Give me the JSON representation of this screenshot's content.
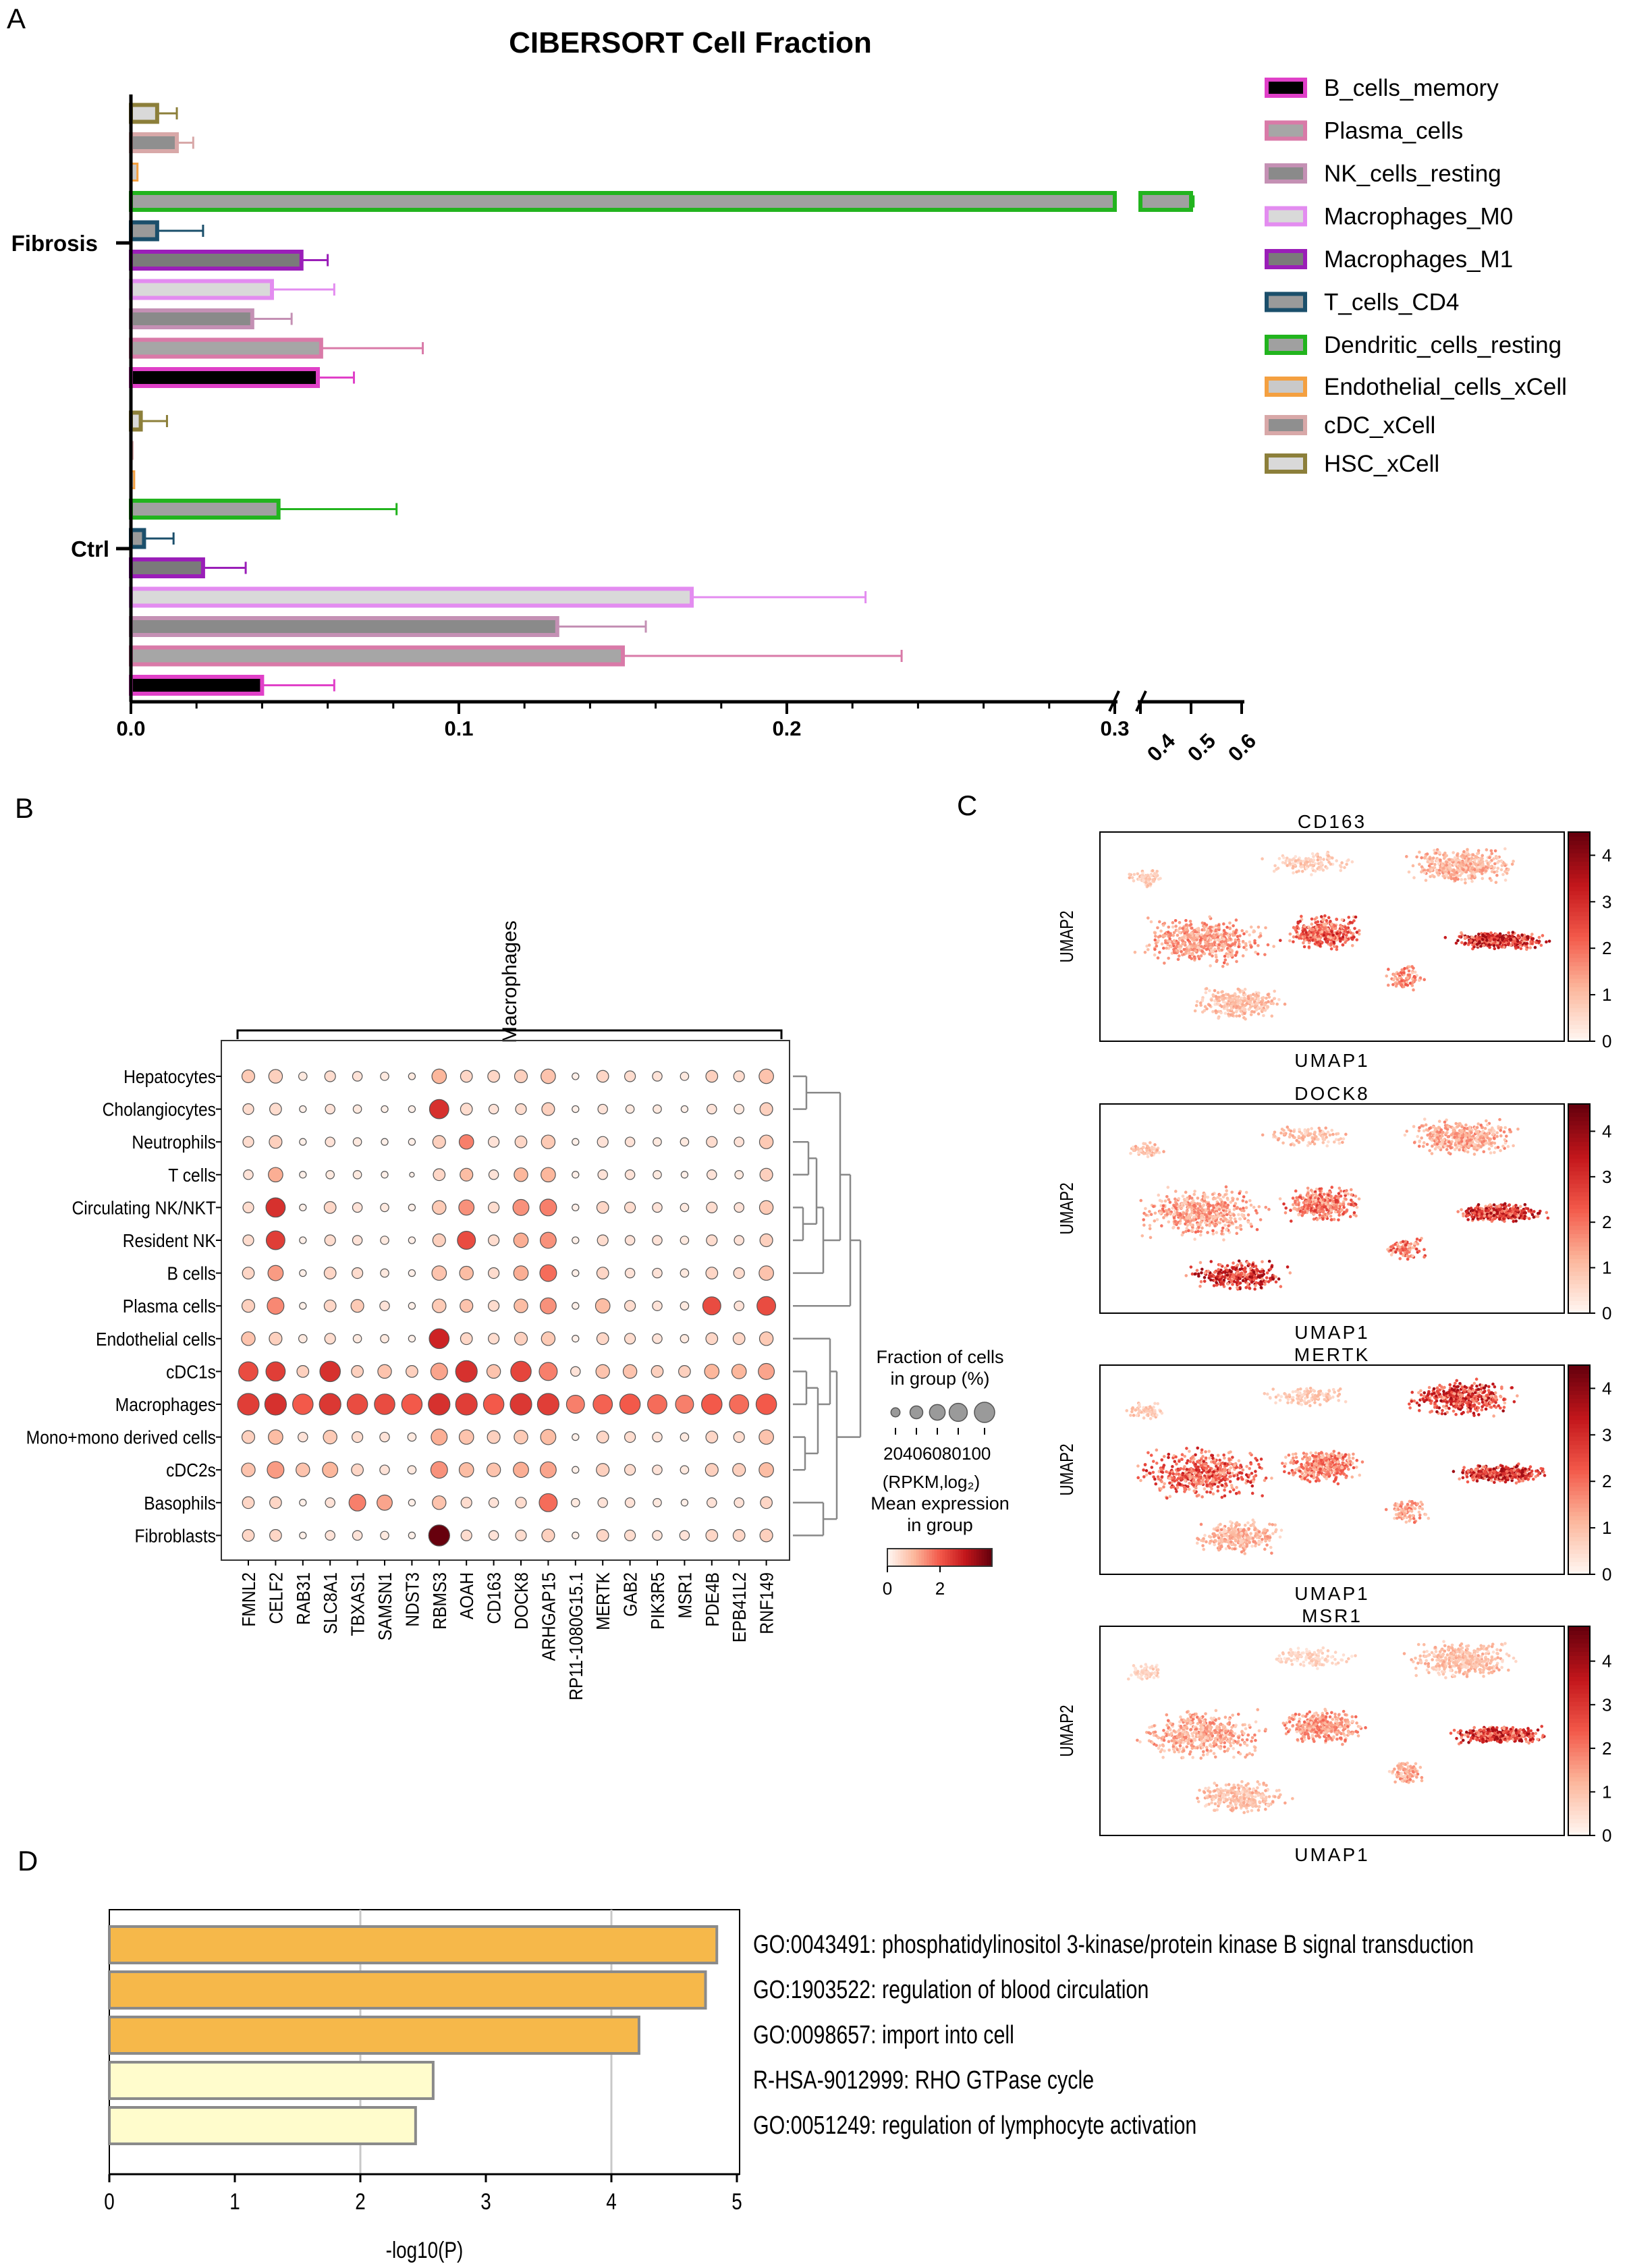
{
  "panels": {
    "a": "A",
    "b": "B",
    "c": "C",
    "d": "D"
  },
  "colors": {
    "accent_orange": "#f6b84a",
    "pale_yellow": "#fffccc",
    "heat_low": "#fff5f0",
    "heat_mid": "#e8453c",
    "heat_high": "#67000d"
  },
  "chart_data": [
    {
      "id": "cibersort",
      "type": "bar",
      "orientation": "horizontal",
      "title": "CIBERSORT Cell Fraction",
      "groups": [
        "Fibrosis",
        "Ctrl"
      ],
      "xlim": [
        0,
        0.6
      ],
      "axis_break": [
        0.3,
        0.4
      ],
      "tick_labels": [
        "0.0",
        "0.1",
        "0.2",
        "0.3",
        "0.4",
        "0.5",
        "0.6"
      ],
      "series": [
        {
          "name": "B_cells_memory",
          "fill": "#000000",
          "edge": "#e040c8",
          "mean": {
            "Fibrosis": 0.057,
            "Ctrl": 0.04
          },
          "err": {
            "Fibrosis": 0.011,
            "Ctrl": 0.022
          }
        },
        {
          "name": "Plasma_cells",
          "fill": "#a6a6a6",
          "edge": "#d97aa8",
          "mean": {
            "Fibrosis": 0.058,
            "Ctrl": 0.15
          },
          "err": {
            "Fibrosis": 0.031,
            "Ctrl": 0.085
          }
        },
        {
          "name": "NK_cells_resting",
          "fill": "#8a8a8a",
          "edge": "#c490b4",
          "mean": {
            "Fibrosis": 0.037,
            "Ctrl": 0.13
          },
          "err": {
            "Fibrosis": 0.012,
            "Ctrl": 0.027
          }
        },
        {
          "name": "Macrophages_M0",
          "fill": "#d9d9d9",
          "edge": "#e38cf0",
          "mean": {
            "Fibrosis": 0.043,
            "Ctrl": 0.171
          },
          "err": {
            "Fibrosis": 0.019,
            "Ctrl": 0.053
          }
        },
        {
          "name": "Macrophages_M1",
          "fill": "#7a7a7a",
          "edge": "#9a1eb8",
          "mean": {
            "Fibrosis": 0.052,
            "Ctrl": 0.022
          },
          "err": {
            "Fibrosis": 0.008,
            "Ctrl": 0.013
          }
        },
        {
          "name": "T_cells_CD4",
          "fill": "#9a9a9a",
          "edge": "#1b4f6b",
          "mean": {
            "Fibrosis": 0.008,
            "Ctrl": 0.004
          },
          "err": {
            "Fibrosis": 0.014,
            "Ctrl": 0.009
          }
        },
        {
          "name": "Dendritic_cells_resting",
          "fill": "#a0a0a0",
          "edge": "#22b41e",
          "mean": {
            "Fibrosis": 0.5,
            "Ctrl": 0.045
          },
          "err": {
            "Fibrosis": 0.005,
            "Ctrl": 0.036
          }
        },
        {
          "name": "Endothelial_cells_xCell",
          "fill": "#c9c9c9",
          "edge": "#f4a040",
          "mean": {
            "Fibrosis": 0.002,
            "Ctrl": 0.001
          },
          "err": {
            "Fibrosis": 0.0,
            "Ctrl": 0.0
          }
        },
        {
          "name": "cDC_xCell",
          "fill": "#8f8f8f",
          "edge": "#d8a8a8",
          "mean": {
            "Fibrosis": 0.014,
            "Ctrl": 0.0005
          },
          "err": {
            "Fibrosis": 0.005,
            "Ctrl": 0.0
          }
        },
        {
          "name": "HSC_xCell",
          "fill": "#d9d9d9",
          "edge": "#8c7f3a",
          "mean": {
            "Fibrosis": 0.008,
            "Ctrl": 0.003
          },
          "err": {
            "Fibrosis": 0.006,
            "Ctrl": 0.008
          }
        }
      ]
    },
    {
      "id": "dotplot",
      "type": "scatter",
      "subtype": "dot_plot",
      "group_label": "Macrophages",
      "rows": [
        "Hepatocytes",
        "Cholangiocytes",
        "Neutrophils",
        "T cells",
        "Circulating NK/NKT",
        "Resident NK",
        "B cells",
        "Plasma cells",
        "Endothelial cells",
        "cDC1s",
        "Macrophages",
        "Mono+mono derived cells",
        "cDC2s",
        "Basophils",
        "Fibroblasts"
      ],
      "genes": [
        "FMNL2",
        "CELF2",
        "RAB31",
        "SLC8A1",
        "TBXAS1",
        "SAMSN1",
        "NDST3",
        "RBMS3",
        "AOAH",
        "CD163",
        "DOCK8",
        "ARHGAP15",
        "RP11-1080G15.1",
        "MERTK",
        "GAB2",
        "PIK3R5",
        "MSR1",
        "PDE4B",
        "EPB41L2",
        "RNF149"
      ],
      "fraction_pct": [
        [
          35,
          40,
          15,
          25,
          20,
          15,
          10,
          45,
          30,
          30,
          35,
          45,
          10,
          30,
          25,
          20,
          15,
          30,
          25,
          45
        ],
        [
          25,
          30,
          10,
          20,
          15,
          10,
          10,
          80,
          30,
          20,
          25,
          35,
          10,
          20,
          15,
          15,
          10,
          20,
          20,
          35
        ],
        [
          25,
          35,
          10,
          20,
          15,
          10,
          10,
          35,
          45,
          25,
          30,
          40,
          10,
          25,
          20,
          15,
          15,
          25,
          20,
          40
        ],
        [
          20,
          45,
          10,
          15,
          15,
          10,
          5,
          30,
          35,
          20,
          40,
          45,
          10,
          20,
          20,
          15,
          10,
          20,
          15,
          35
        ],
        [
          25,
          80,
          10,
          30,
          20,
          15,
          10,
          40,
          50,
          25,
          55,
          60,
          10,
          30,
          25,
          20,
          15,
          25,
          20,
          40
        ],
        [
          25,
          75,
          10,
          25,
          20,
          15,
          10,
          35,
          70,
          25,
          45,
          55,
          10,
          25,
          20,
          20,
          15,
          25,
          20,
          35
        ],
        [
          30,
          50,
          10,
          30,
          25,
          15,
          10,
          45,
          40,
          25,
          45,
          60,
          10,
          30,
          20,
          20,
          15,
          30,
          25,
          45
        ],
        [
          35,
          60,
          10,
          30,
          35,
          20,
          10,
          40,
          35,
          25,
          40,
          55,
          10,
          45,
          25,
          20,
          15,
          70,
          20,
          75
        ],
        [
          40,
          35,
          15,
          25,
          15,
          15,
          10,
          85,
          30,
          25,
          35,
          40,
          10,
          30,
          25,
          20,
          15,
          30,
          30,
          40
        ],
        [
          80,
          80,
          30,
          90,
          30,
          40,
          30,
          60,
          100,
          40,
          90,
          70,
          20,
          40,
          40,
          30,
          30,
          45,
          45,
          55
        ],
        [
          100,
          100,
          90,
          100,
          90,
          90,
          90,
          100,
          100,
          90,
          100,
          100,
          70,
          80,
          90,
          80,
          70,
          90,
          80,
          90
        ],
        [
          35,
          45,
          20,
          40,
          25,
          20,
          15,
          55,
          45,
          35,
          40,
          50,
          10,
          30,
          25,
          20,
          15,
          30,
          25,
          45
        ],
        [
          40,
          60,
          40,
          50,
          30,
          20,
          15,
          60,
          45,
          40,
          50,
          55,
          10,
          35,
          25,
          20,
          15,
          35,
          35,
          45
        ],
        [
          30,
          30,
          10,
          20,
          60,
          50,
          10,
          40,
          25,
          20,
          25,
          70,
          15,
          20,
          20,
          15,
          10,
          20,
          20,
          30
        ],
        [
          30,
          30,
          10,
          20,
          20,
          15,
          10,
          95,
          25,
          20,
          25,
          35,
          10,
          30,
          25,
          20,
          20,
          30,
          30,
          35
        ]
      ],
      "mean_expression": [
        [
          0.7,
          0.6,
          0.2,
          0.4,
          0.3,
          0.2,
          0.2,
          1.0,
          0.5,
          0.5,
          0.6,
          0.8,
          0.1,
          0.5,
          0.4,
          0.3,
          0.2,
          0.6,
          0.4,
          0.8
        ],
        [
          0.4,
          0.4,
          0.1,
          0.3,
          0.2,
          0.1,
          0.1,
          2.6,
          0.4,
          0.3,
          0.4,
          0.6,
          0.1,
          0.3,
          0.2,
          0.2,
          0.1,
          0.3,
          0.2,
          0.6
        ],
        [
          0.4,
          0.6,
          0.1,
          0.3,
          0.2,
          0.1,
          0.1,
          0.6,
          1.6,
          0.3,
          0.5,
          0.7,
          0.1,
          0.3,
          0.3,
          0.2,
          0.2,
          0.4,
          0.3,
          0.7
        ],
        [
          0.3,
          1.1,
          0.1,
          0.2,
          0.2,
          0.1,
          0.1,
          0.5,
          0.9,
          0.3,
          1.0,
          1.0,
          0.1,
          0.3,
          0.3,
          0.2,
          0.1,
          0.3,
          0.2,
          0.6
        ],
        [
          0.4,
          2.6,
          0.1,
          0.5,
          0.3,
          0.2,
          0.1,
          0.7,
          1.4,
          0.4,
          1.4,
          1.6,
          0.1,
          0.5,
          0.4,
          0.3,
          0.2,
          0.4,
          0.3,
          0.7
        ],
        [
          0.4,
          2.4,
          0.1,
          0.4,
          0.3,
          0.2,
          0.1,
          0.6,
          2.2,
          0.4,
          1.1,
          1.4,
          0.1,
          0.4,
          0.3,
          0.3,
          0.2,
          0.4,
          0.3,
          0.6
        ],
        [
          0.5,
          1.3,
          0.1,
          0.5,
          0.4,
          0.2,
          0.1,
          0.8,
          0.9,
          0.4,
          1.1,
          1.8,
          0.1,
          0.5,
          0.3,
          0.3,
          0.2,
          0.5,
          0.4,
          0.8
        ],
        [
          0.6,
          1.5,
          0.1,
          0.5,
          0.7,
          0.3,
          0.1,
          0.7,
          0.8,
          0.4,
          0.9,
          1.4,
          0.1,
          0.9,
          0.4,
          0.3,
          0.2,
          2.2,
          0.3,
          2.2
        ],
        [
          0.8,
          0.6,
          0.2,
          0.4,
          0.2,
          0.2,
          0.1,
          2.8,
          0.5,
          0.4,
          0.6,
          0.7,
          0.1,
          0.5,
          0.4,
          0.3,
          0.2,
          0.5,
          0.5,
          0.7
        ],
        [
          2.2,
          2.4,
          0.6,
          2.6,
          0.6,
          0.8,
          0.6,
          1.2,
          2.6,
          0.8,
          2.3,
          1.6,
          0.3,
          0.8,
          0.8,
          0.6,
          0.6,
          1.0,
          1.0,
          1.2
        ],
        [
          2.4,
          2.6,
          2.0,
          2.5,
          2.2,
          2.2,
          2.0,
          2.6,
          2.4,
          2.0,
          2.5,
          2.4,
          1.6,
          1.9,
          2.0,
          1.8,
          1.6,
          2.0,
          1.8,
          2.0
        ],
        [
          0.6,
          0.9,
          0.3,
          0.7,
          0.4,
          0.3,
          0.2,
          1.1,
          0.8,
          0.6,
          0.7,
          0.9,
          0.1,
          0.5,
          0.4,
          0.3,
          0.2,
          0.5,
          0.4,
          0.8
        ],
        [
          0.8,
          1.3,
          0.8,
          1.0,
          0.5,
          0.3,
          0.2,
          1.4,
          0.9,
          0.8,
          1.1,
          1.2,
          0.1,
          0.6,
          0.4,
          0.3,
          0.2,
          0.6,
          0.6,
          0.9
        ],
        [
          0.5,
          0.5,
          0.1,
          0.3,
          1.6,
          1.2,
          0.1,
          0.8,
          0.4,
          0.3,
          0.4,
          1.8,
          0.2,
          0.3,
          0.3,
          0.2,
          0.1,
          0.3,
          0.3,
          0.5
        ],
        [
          0.5,
          0.5,
          0.1,
          0.3,
          0.3,
          0.2,
          0.1,
          4.0,
          0.4,
          0.3,
          0.4,
          0.6,
          0.1,
          0.5,
          0.4,
          0.3,
          0.3,
          0.5,
          0.5,
          0.6
        ]
      ],
      "size_legend_title": [
        "Fraction of cells",
        "in group (%)"
      ],
      "size_legend_values": [
        20,
        40,
        60,
        80,
        100
      ],
      "size_legend_labels": [
        "20406080",
        "100"
      ],
      "color_legend_title": [
        "(RPKM,log₂)",
        "Mean expression",
        "in group"
      ],
      "color_ticks": [
        "0",
        "2"
      ],
      "color_range": [
        0,
        4
      ]
    },
    {
      "id": "umap",
      "type": "scatter",
      "subtype": "umap_feature_plots",
      "xlabel": "UMAP1",
      "ylabel": "UMAP2",
      "plots": [
        {
          "title": "CD163",
          "colorbar_ticks": [
            "0",
            "1",
            "2",
            "3",
            "4"
          ],
          "max": 4.5
        },
        {
          "title": "DOCK8",
          "colorbar_ticks": [
            "0",
            "1",
            "2",
            "3",
            "4"
          ],
          "max": 4.6
        },
        {
          "title": "MERTK",
          "colorbar_ticks": [
            "0",
            "1",
            "2",
            "3",
            "4"
          ],
          "max": 4.5
        },
        {
          "title": "MSR1",
          "colorbar_ticks": [
            "0",
            "1",
            "2",
            "3",
            "4"
          ],
          "max": 4.8
        }
      ]
    },
    {
      "id": "enrichment",
      "type": "bar",
      "orientation": "horizontal",
      "xlabel": "-log10(P)",
      "xlim": [
        0,
        5.05
      ],
      "ticks": [
        "0",
        "1",
        "2",
        "3",
        "4",
        "5"
      ],
      "categories": [
        "GO:0043491: phosphatidylinositol 3-kinase/protein kinase B signal transduction",
        "GO:1903522: regulation of blood circulation",
        "GO:0098657: import into cell",
        "R-HSA-9012999: RHO GTPase cycle",
        "GO:0051249: regulation of lymphocyte activation"
      ],
      "values": [
        4.84,
        4.75,
        4.22,
        2.58,
        2.44
      ],
      "bar_colors": [
        "#f6b84a",
        "#f6b84a",
        "#f6b84a",
        "#fffccc",
        "#fffccc"
      ]
    }
  ]
}
